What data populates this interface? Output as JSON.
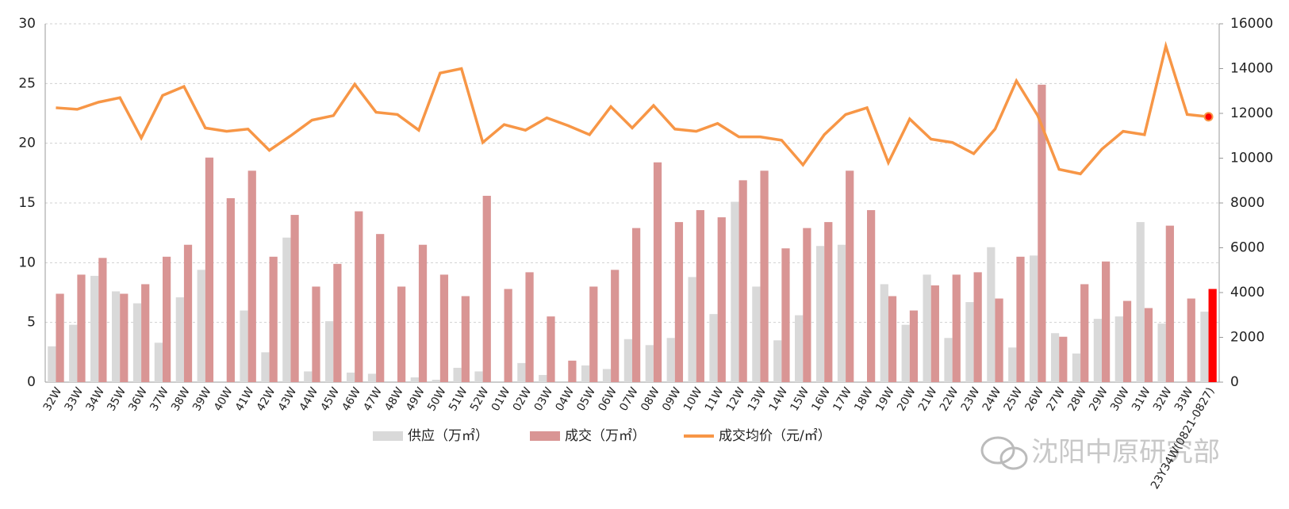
{
  "chart_data": {
    "type": "bar_line",
    "categories": [
      "32W",
      "33W",
      "34W",
      "35W",
      "36W",
      "37W",
      "38W",
      "39W",
      "40W",
      "41W",
      "42W",
      "43W",
      "44W",
      "45W",
      "46W",
      "47W",
      "48W",
      "49W",
      "50W",
      "51W",
      "52W",
      "01W",
      "02W",
      "03W",
      "04W",
      "05W",
      "06W",
      "07W",
      "08W",
      "09W",
      "10W",
      "11W",
      "12W",
      "13W",
      "14W",
      "15W",
      "16W",
      "17W",
      "18W",
      "19W",
      "20W",
      "21W",
      "22W",
      "23W",
      "24W",
      "25W",
      "26W",
      "27W",
      "28W",
      "29W",
      "30W",
      "31W",
      "32W",
      "33W",
      "23Y34W(0821-0827)"
    ],
    "series": [
      {
        "name": "供应（万㎡）",
        "color": "#d9d9d9",
        "values": [
          3.0,
          4.8,
          8.9,
          7.6,
          6.6,
          3.3,
          7.1,
          9.4,
          0,
          6.0,
          2.5,
          12.1,
          0.9,
          5.1,
          0.8,
          0.7,
          0,
          0.4,
          0.2,
          1.2,
          0.9,
          0,
          1.6,
          0.6,
          0,
          1.4,
          1.1,
          3.6,
          3.1,
          3.7,
          8.8,
          5.7,
          15.1,
          8.0,
          3.5,
          5.6,
          11.4,
          11.5,
          0,
          8.2,
          4.8,
          9.0,
          3.7,
          6.7,
          11.3,
          2.9,
          10.6,
          4.1,
          2.4,
          5.3,
          5.5,
          13.4,
          4.9,
          0,
          5.9
        ]
      },
      {
        "name": "成交（万㎡）",
        "color": "#d99594",
        "values": [
          7.4,
          9.0,
          10.4,
          7.4,
          8.2,
          10.5,
          11.5,
          18.8,
          15.4,
          17.7,
          10.5,
          14.0,
          8.0,
          9.9,
          14.3,
          12.4,
          8.0,
          11.5,
          9.0,
          7.2,
          15.6,
          7.8,
          9.2,
          5.5,
          1.8,
          8.0,
          9.4,
          12.9,
          18.4,
          13.4,
          14.4,
          13.8,
          16.9,
          17.7,
          11.2,
          12.9,
          13.4,
          17.7,
          14.4,
          7.2,
          6.0,
          8.1,
          9.0,
          9.2,
          7.0,
          10.5,
          24.9,
          3.8,
          8.2,
          10.1,
          6.8,
          6.2,
          13.1,
          7.0,
          7.8
        ]
      },
      {
        "name": "成交均价（元/㎡）",
        "color": "#f79646",
        "axis": "y2",
        "values": [
          12250,
          12180,
          12500,
          12700,
          10900,
          12800,
          13200,
          11350,
          11200,
          11300,
          10350,
          11000,
          11700,
          11900,
          13300,
          12050,
          11950,
          11250,
          13800,
          14000,
          10700,
          11500,
          11250,
          11800,
          11450,
          11050,
          12300,
          11350,
          12350,
          11300,
          11200,
          11550,
          10950,
          10950,
          10800,
          9700,
          11050,
          11950,
          12250,
          9800,
          11750,
          10850,
          10700,
          10200,
          11300,
          13450,
          11900,
          9500,
          9300,
          10400,
          11200,
          11050,
          15000,
          11950,
          11850
        ]
      }
    ],
    "highlight_color": "#ff0000",
    "ylim": [
      0,
      30
    ],
    "yticks": [
      0,
      5,
      10,
      15,
      20,
      25,
      30
    ],
    "y2lim": [
      0,
      16000
    ],
    "y2ticks": [
      0,
      2000,
      4000,
      6000,
      8000,
      10000,
      12000,
      14000,
      16000
    ],
    "grid": true,
    "legend": "bottom"
  },
  "watermark": "沈阳中原研究部"
}
